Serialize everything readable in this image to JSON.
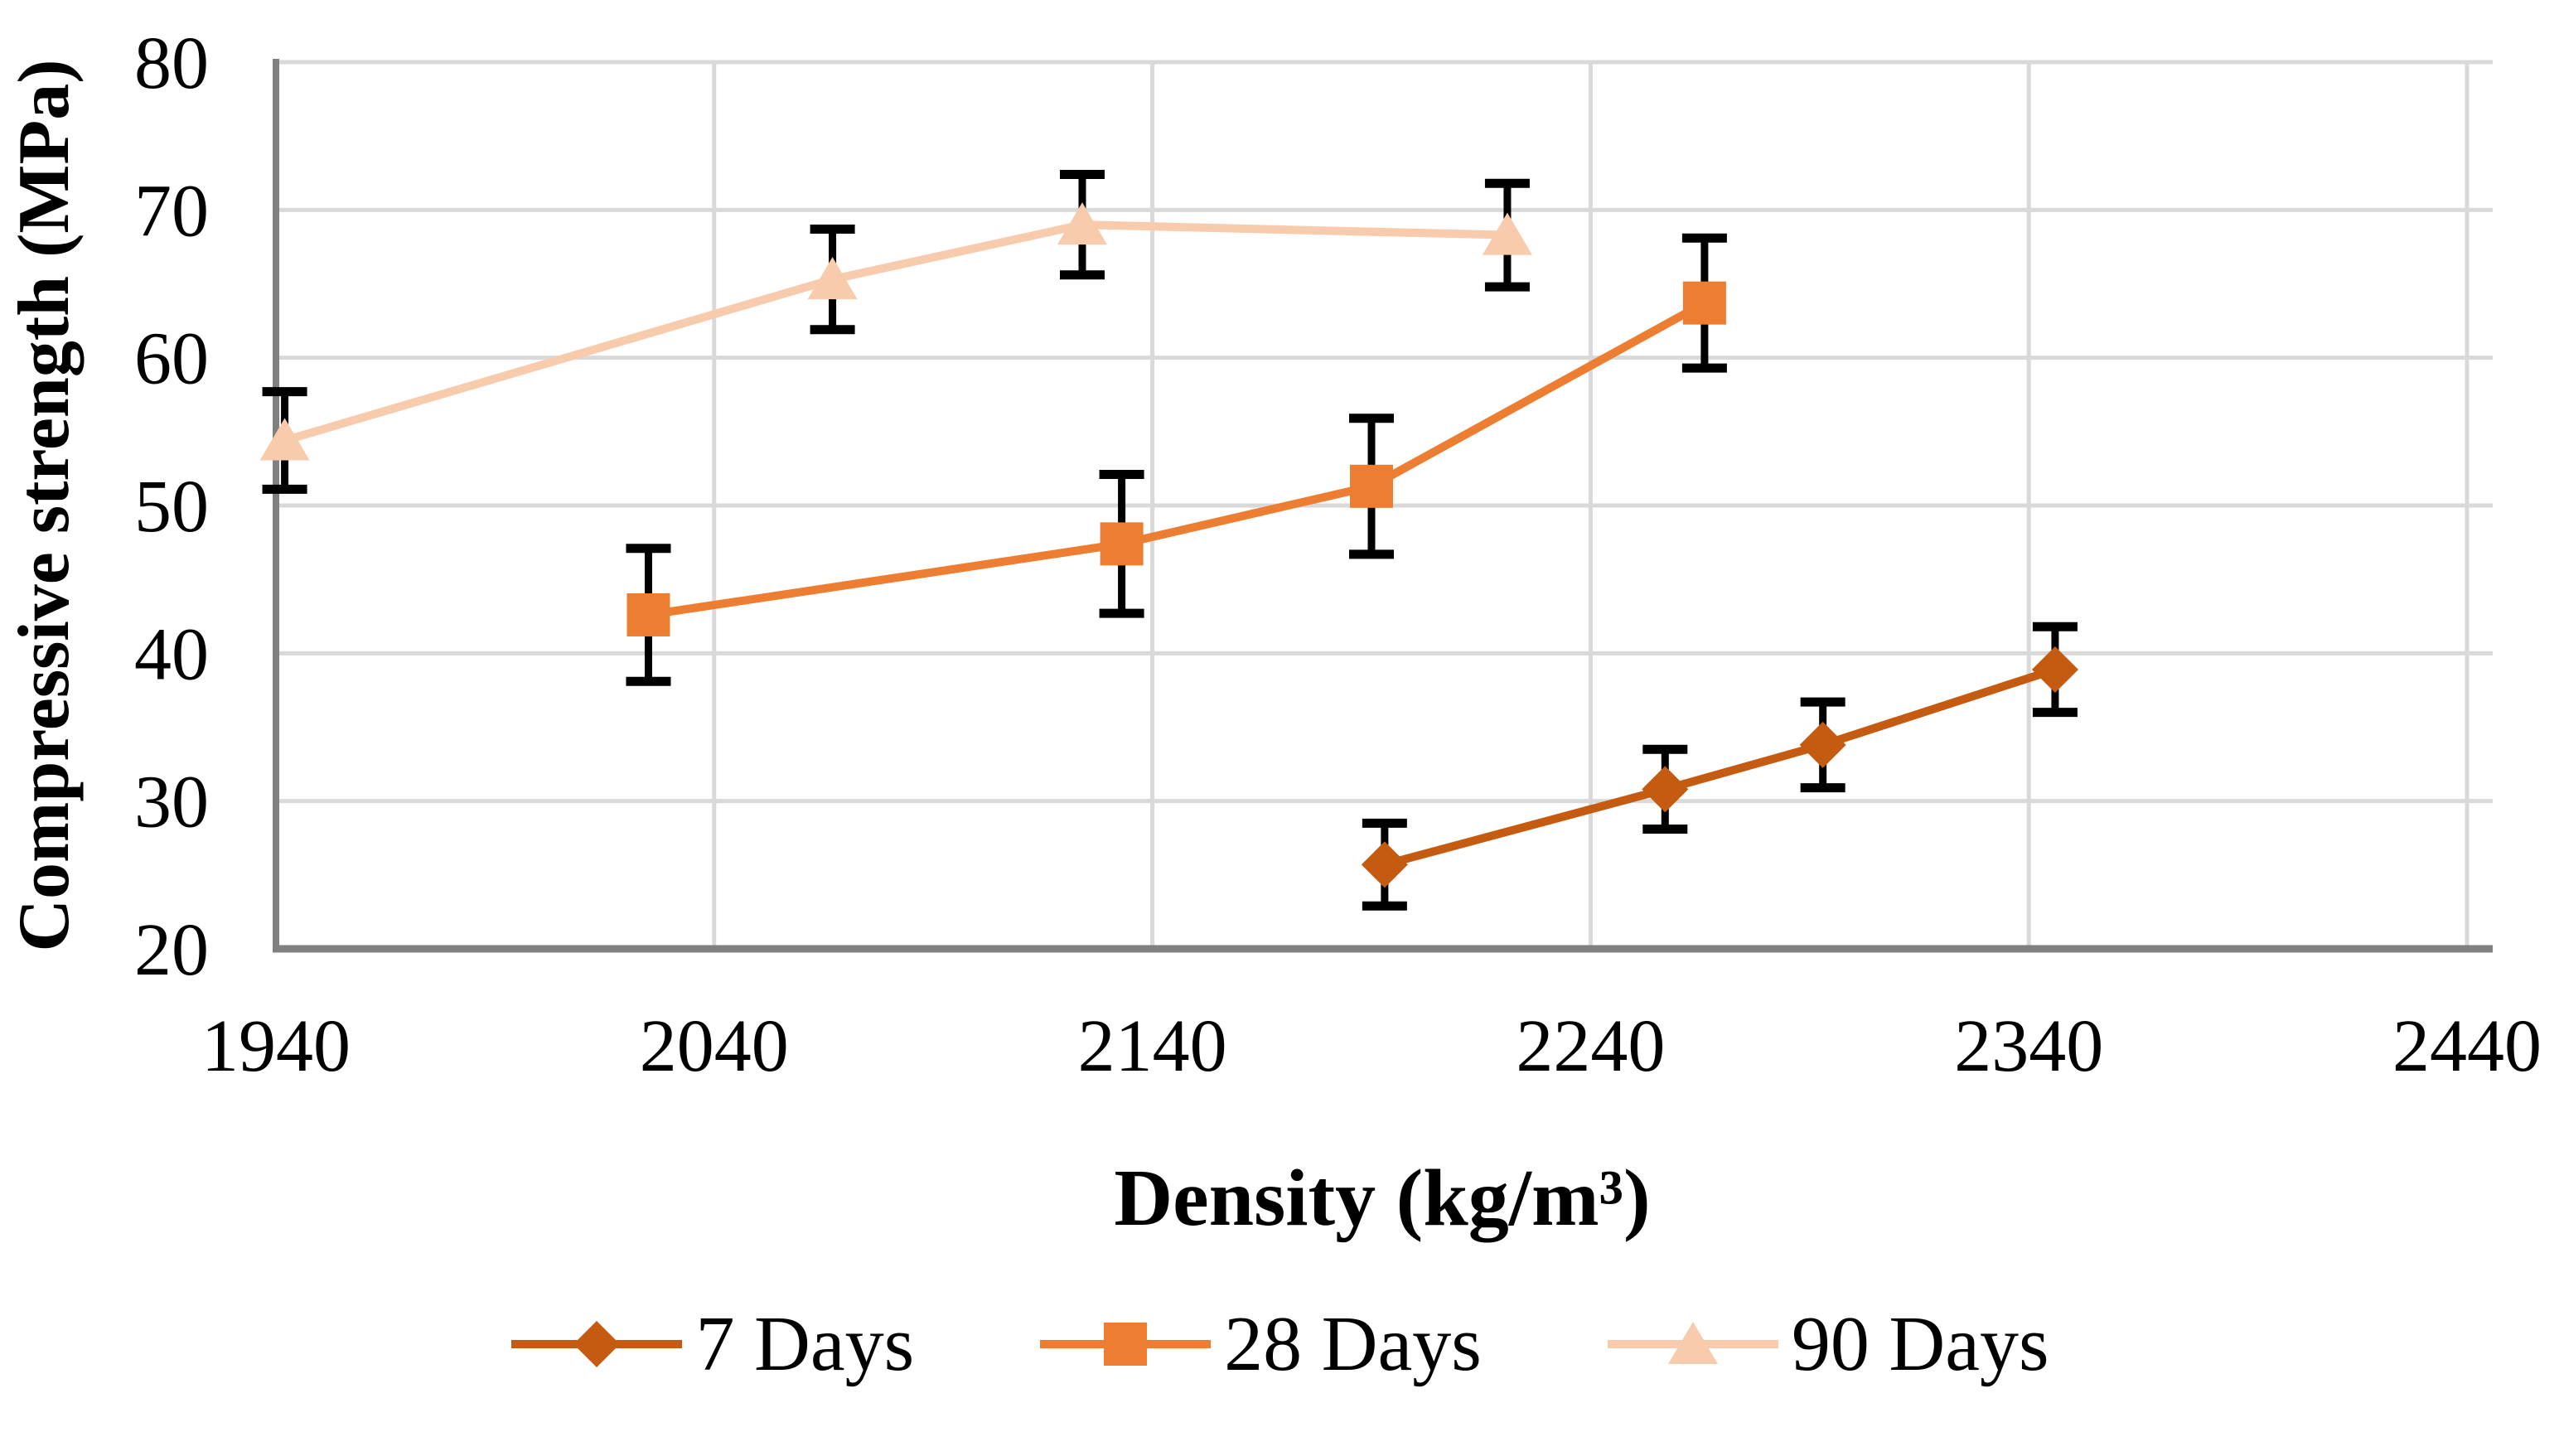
{
  "chart_data": {
    "type": "line",
    "title": "",
    "xlabel": "Density (kg/m³)",
    "ylabel": "Compressive strength (MPa)",
    "xlim": [
      1940,
      2440
    ],
    "ylim": [
      20,
      80
    ],
    "xticks": [
      1940,
      2040,
      2140,
      2240,
      2340,
      2440
    ],
    "yticks": [
      20,
      30,
      40,
      50,
      60,
      70,
      80
    ],
    "grid": true,
    "legend_position": "bottom",
    "colors": {
      "gridline": "#D9D9D9",
      "axis_line": "#808080",
      "error_bar": "#000000",
      "text": "#000000"
    },
    "series": [
      {
        "name": "7 Days",
        "color": "#C55A11",
        "marker": "diamond",
        "points": [
          {
            "x": 2193,
            "y": 25.7,
            "err": 2.8
          },
          {
            "x": 2257,
            "y": 30.8,
            "err": 2.7
          },
          {
            "x": 2293,
            "y": 33.8,
            "err": 2.9
          },
          {
            "x": 2346,
            "y": 38.9,
            "err": 2.9
          }
        ]
      },
      {
        "name": "28 Days",
        "color": "#ED7D31",
        "marker": "square",
        "points": [
          {
            "x": 2025,
            "y": 42.6,
            "err": 4.5
          },
          {
            "x": 2133,
            "y": 47.4,
            "err": 4.7
          },
          {
            "x": 2190,
            "y": 51.3,
            "err": 4.6
          },
          {
            "x": 2266,
            "y": 63.7,
            "err": 4.4
          }
        ]
      },
      {
        "name": "90 Days",
        "color": "#F8CBAD",
        "marker": "triangle",
        "points": [
          {
            "x": 1942,
            "y": 54.4,
            "err": 3.3
          },
          {
            "x": 2067,
            "y": 65.3,
            "err": 3.4
          },
          {
            "x": 2124,
            "y": 69.0,
            "err": 3.4
          },
          {
            "x": 2221,
            "y": 68.3,
            "err": 3.5
          }
        ]
      }
    ]
  }
}
